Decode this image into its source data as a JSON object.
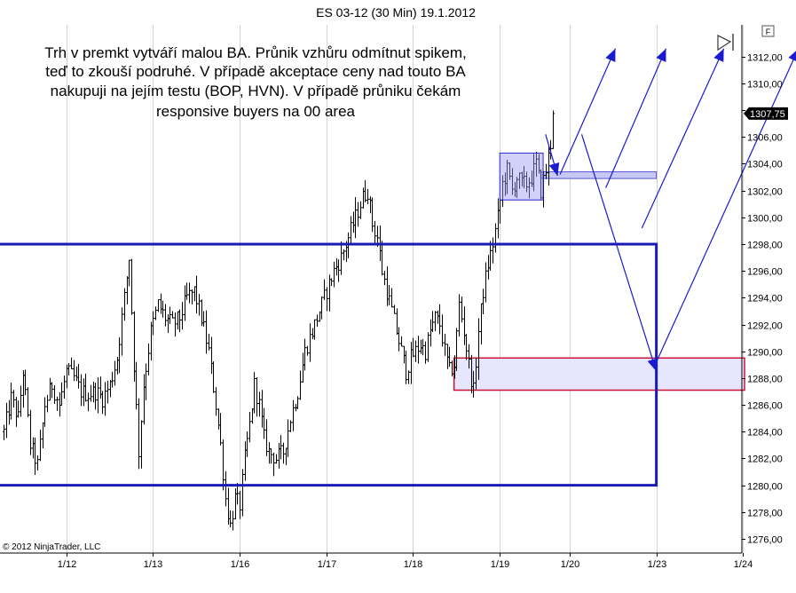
{
  "chart_data": {
    "type": "candlestick",
    "title": "ES 03-12 (30 Min)  19.1.2012",
    "annotation_lines": [
      "Trh v premkt vytváří malou BA. Průnik vzhůru odmítnut spikem,",
      "teď to zkouší podruhé. V případě akceptace ceny nad touto BA",
      "nakupuji na jejím testu (BOP, HVN). V případě průniku čekám",
      "responsive buyers na 00 area"
    ],
    "copyright": "© 2012 NinjaTrader, LLC",
    "ylim": [
      1275.0,
      1315.0
    ],
    "y_ticks": [
      1276,
      1278,
      1280,
      1282,
      1284,
      1286,
      1288,
      1290,
      1292,
      1294,
      1296,
      1298,
      1300,
      1302,
      1304,
      1306,
      1308,
      1310,
      1312
    ],
    "y_tick_labels": [
      "1276,00",
      "1278,00",
      "1280,00",
      "1282,00",
      "1284,00",
      "1286,00",
      "1288,00",
      "1290,00",
      "1292,00",
      "1294,00",
      "1296,00",
      "1298,00",
      "1300,00",
      "1302,00",
      "1304,00",
      "1306,00",
      "1308,00",
      "1310,00",
      "1312,00"
    ],
    "x_ticks": [
      {
        "bar": 26,
        "label": "1/12"
      },
      {
        "bar": 62,
        "label": "1/13"
      },
      {
        "bar": 98,
        "label": "1/16"
      },
      {
        "bar": 134,
        "label": "1/17"
      },
      {
        "bar": 170,
        "label": "1/18"
      },
      {
        "bar": 206,
        "label": "1/19"
      },
      {
        "bar": 235,
        "label": "1/20"
      },
      {
        "bar": 271,
        "label": "1/23"
      },
      {
        "bar": 307,
        "label": "1/24"
      }
    ],
    "bar_count_visible": 330,
    "last_price": 1307.75,
    "last_price_label": "1307,75",
    "price_path": [
      [
        0,
        1284.0
      ],
      [
        3,
        1286.5
      ],
      [
        6,
        1285.0
      ],
      [
        8,
        1288.5
      ],
      [
        11,
        1283.0
      ],
      [
        14,
        1281.5
      ],
      [
        17,
        1286.0
      ],
      [
        20,
        1287.5
      ],
      [
        23,
        1286.0
      ],
      [
        26,
        1288.5
      ],
      [
        29,
        1288.0
      ],
      [
        32,
        1287.0
      ],
      [
        35,
        1286.8
      ],
      [
        38,
        1287.0
      ],
      [
        41,
        1286.5
      ],
      [
        44,
        1287.5
      ],
      [
        47,
        1289.5
      ],
      [
        50,
        1294.0
      ],
      [
        52,
        1297.0
      ],
      [
        54,
        1289.0
      ],
      [
        56,
        1282.5
      ],
      [
        58,
        1287.5
      ],
      [
        61,
        1291.5
      ],
      [
        64,
        1293.5
      ],
      [
        67,
        1292.5
      ],
      [
        70,
        1292.0
      ],
      [
        73,
        1292.5
      ],
      [
        76,
        1294.0
      ],
      [
        79,
        1294.5
      ],
      [
        82,
        1292.5
      ],
      [
        85,
        1290.0
      ],
      [
        88,
        1286.0
      ],
      [
        90,
        1283.0
      ],
      [
        92,
        1279.0
      ],
      [
        94,
        1277.0
      ],
      [
        96,
        1279.0
      ],
      [
        98,
        1278.5
      ],
      [
        100,
        1282.0
      ],
      [
        102,
        1284.5
      ],
      [
        104,
        1287.5
      ],
      [
        106,
        1286.0
      ],
      [
        108,
        1283.5
      ],
      [
        110,
        1282.5
      ],
      [
        113,
        1282.0
      ],
      [
        116,
        1282.5
      ],
      [
        119,
        1285.0
      ],
      [
        122,
        1287.0
      ],
      [
        125,
        1290.0
      ],
      [
        128,
        1291.5
      ],
      [
        131,
        1293.0
      ],
      [
        134,
        1294.5
      ],
      [
        137,
        1296.0
      ],
      [
        140,
        1297.0
      ],
      [
        143,
        1298.5
      ],
      [
        146,
        1300.0
      ],
      [
        149,
        1301.5
      ],
      [
        151,
        1302.0
      ],
      [
        153,
        1299.5
      ],
      [
        155,
        1298.5
      ],
      [
        157,
        1296.0
      ],
      [
        159,
        1294.5
      ],
      [
        161,
        1293.0
      ],
      [
        163,
        1291.5
      ],
      [
        165,
        1290.0
      ],
      [
        167,
        1288.5
      ],
      [
        169,
        1289.5
      ],
      [
        171,
        1290.0
      ],
      [
        173,
        1290.5
      ],
      [
        175,
        1290.0
      ],
      [
        177,
        1291.5
      ],
      [
        179,
        1292.5
      ],
      [
        181,
        1292.0
      ],
      [
        183,
        1290.0
      ],
      [
        185,
        1288.5
      ],
      [
        187,
        1289.0
      ],
      [
        189,
        1293.5
      ],
      [
        191,
        1291.5
      ],
      [
        193,
        1289.0
      ],
      [
        195,
        1287.0
      ],
      [
        197,
        1291.5
      ],
      [
        199,
        1294.5
      ],
      [
        201,
        1296.5
      ],
      [
        203,
        1298.0
      ],
      [
        205,
        1300.0
      ],
      [
        207,
        1302.5
      ],
      [
        209,
        1303.5
      ],
      [
        211,
        1302.0
      ],
      [
        213,
        1303.0
      ],
      [
        215,
        1302.5
      ],
      [
        217,
        1302.5
      ],
      [
        219,
        1303.0
      ],
      [
        221,
        1304.0
      ],
      [
        223,
        1302.0
      ],
      [
        225,
        1303.5
      ],
      [
        227,
        1305.5
      ],
      [
        228,
        1307.75
      ]
    ],
    "zones": [
      {
        "name": "big-balance",
        "from_bar": -5,
        "to_bar": 271,
        "low": 1280.0,
        "high": 1298.0,
        "color": "#1a1ab4"
      },
      {
        "name": "premarket-balance",
        "from_bar": 206,
        "to_bar": 224,
        "low": 1301.3,
        "high": 1304.8,
        "color": "#2a2ad8"
      },
      {
        "name": "hvn-line",
        "from_bar": 223,
        "to_bar": 271,
        "low": 1302.9,
        "high": 1303.4,
        "color": "#5656dd"
      },
      {
        "name": "00-area",
        "from_bar": 187,
        "to_bar": 340,
        "low": 1287.1,
        "high": 1289.5,
        "color": "#cc1133"
      }
    ],
    "arrows": [
      {
        "from": [
          225,
          1306.2
        ],
        "to": [
          230,
          1303.1
        ]
      },
      {
        "from": [
          231,
          1303.2
        ],
        "to": [
          254,
          1312.6
        ]
      },
      {
        "from": [
          250,
          1302.2
        ],
        "to": [
          275,
          1312.6
        ]
      },
      {
        "from": [
          265,
          1299.2
        ],
        "to": [
          299,
          1312.6
        ]
      },
      {
        "from": [
          240,
          1306.2
        ],
        "to": [
          271,
          1288.5
        ]
      },
      {
        "from": [
          271,
          1289.2
        ],
        "to": [
          330,
          1312.6
        ]
      }
    ]
  },
  "ui": {
    "f_button": "F",
    "scroll_end_icon": "scroll-to-end-icon"
  },
  "colors": {
    "candle": "#000000",
    "zone_blue": "#1a1ab4",
    "zone_red": "#cc1133",
    "zone_fill": "#e6e6ff",
    "arrow": "#1a1ad0"
  }
}
